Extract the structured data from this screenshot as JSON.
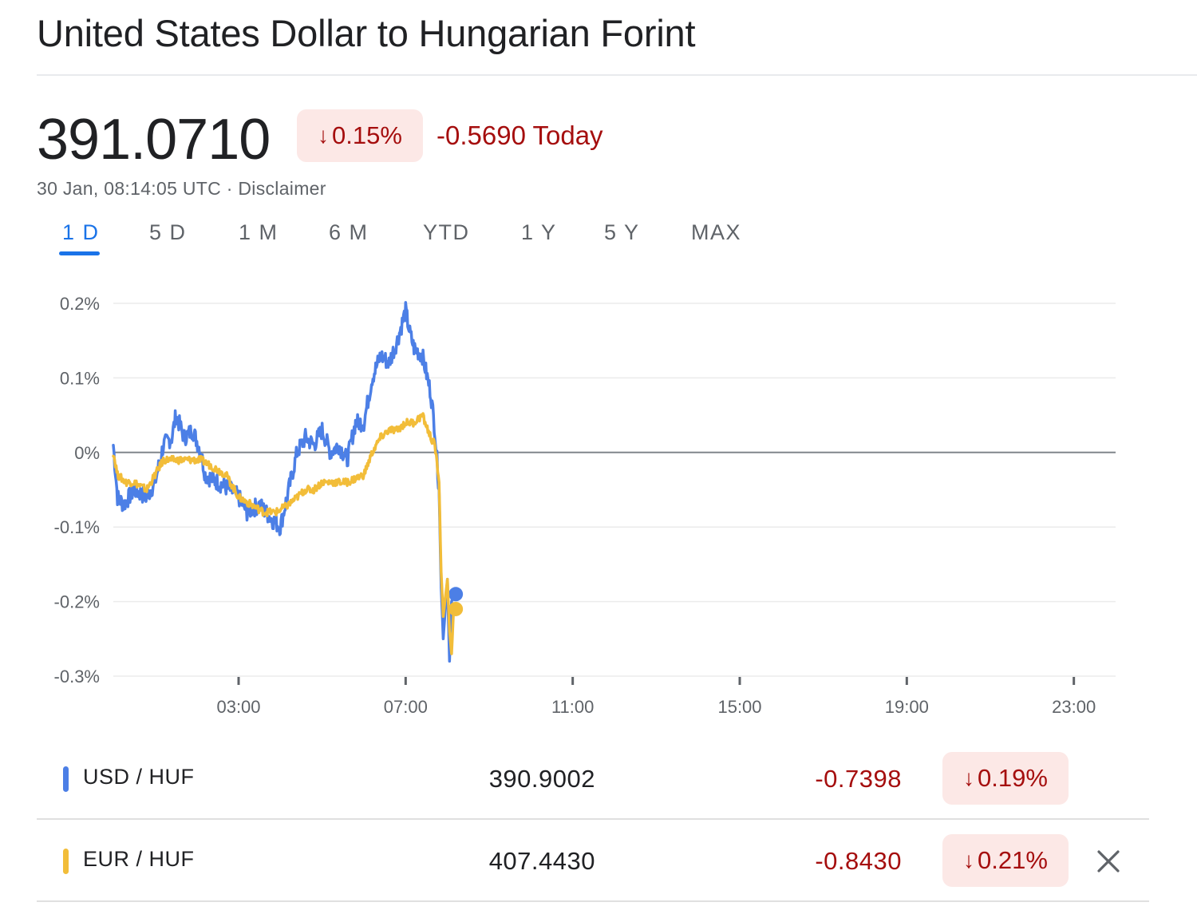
{
  "header": {
    "title": "United States Dollar to Hungarian Forint"
  },
  "quote": {
    "price": "391.0710",
    "change_pct": "0.15%",
    "change_arrow": "↓",
    "change_today": "-0.5690 Today",
    "timestamp": "30 Jan, 08:14:05 UTC · ",
    "disclaimer": "Disclaimer"
  },
  "tabs": [
    {
      "label": "1 D",
      "active": true
    },
    {
      "label": "5 D"
    },
    {
      "label": "1 M"
    },
    {
      "label": "6 M"
    },
    {
      "label": "YTD"
    },
    {
      "label": "1 Y"
    },
    {
      "label": "5 Y"
    },
    {
      "label": "MAX"
    }
  ],
  "colors": {
    "usd_series": "#4c7fe6",
    "eur_series": "#f2bd39",
    "negative": "#a50e0e",
    "negative_bg": "#fce8e6",
    "accent": "#1a73e8"
  },
  "chart_data": {
    "type": "line",
    "x_unit": "hours (UTC)",
    "x_range": [
      0,
      24
    ],
    "ylim": [
      -0.3,
      0.2
    ],
    "y_ticks": [
      "0.2%",
      "0.1%",
      "0%",
      "-0.1%",
      "-0.2%",
      "-0.3%"
    ],
    "y_tick_values": [
      0.2,
      0.1,
      0,
      -0.1,
      -0.2,
      -0.3
    ],
    "x_ticks": [
      "03:00",
      "07:00",
      "11:00",
      "15:00",
      "19:00",
      "23:00"
    ],
    "x_tick_values": [
      3,
      7,
      11,
      15,
      19,
      23
    ],
    "baseline": 0,
    "grid": true,
    "series": [
      {
        "name": "USD / HUF",
        "color": "#4c7fe6",
        "x": [
          0.0,
          0.1,
          0.25,
          0.5,
          0.8,
          1.0,
          1.2,
          1.4,
          1.5,
          1.7,
          1.9,
          2.1,
          2.2,
          2.5,
          2.8,
          3.0,
          3.2,
          3.5,
          3.8,
          4.0,
          4.2,
          4.4,
          4.6,
          4.8,
          5.0,
          5.2,
          5.4,
          5.6,
          5.8,
          6.0,
          6.2,
          6.4,
          6.6,
          6.8,
          7.0,
          7.1,
          7.2,
          7.4,
          7.6,
          7.7,
          7.8,
          7.85,
          7.9,
          8.0,
          8.05,
          8.1,
          8.15,
          8.2
        ],
        "y": [
          0.01,
          -0.06,
          -0.07,
          -0.05,
          -0.06,
          -0.04,
          0.01,
          0.02,
          0.05,
          0.02,
          0.03,
          0.0,
          -0.03,
          -0.04,
          -0.05,
          -0.06,
          -0.08,
          -0.07,
          -0.09,
          -0.1,
          -0.05,
          0.0,
          0.02,
          0.01,
          0.03,
          0.0,
          0.01,
          -0.01,
          0.04,
          0.04,
          0.1,
          0.13,
          0.12,
          0.15,
          0.19,
          0.16,
          0.14,
          0.13,
          0.08,
          0.03,
          -0.05,
          -0.18,
          -0.25,
          -0.17,
          -0.28,
          -0.2,
          -0.19,
          -0.19
        ]
      },
      {
        "name": "EUR / HUF",
        "color": "#f2bd39",
        "x": [
          0.0,
          0.1,
          0.3,
          0.5,
          0.8,
          1.0,
          1.2,
          1.5,
          1.8,
          2.1,
          2.4,
          2.7,
          3.0,
          3.3,
          3.6,
          3.9,
          4.2,
          4.4,
          4.6,
          4.8,
          5.0,
          5.3,
          5.6,
          6.0,
          6.2,
          6.4,
          6.6,
          6.8,
          7.0,
          7.2,
          7.4,
          7.6,
          7.7,
          7.8,
          7.85,
          7.9,
          8.0,
          8.05,
          8.1,
          8.15,
          8.2
        ],
        "y": [
          0.0,
          -0.03,
          -0.04,
          -0.04,
          -0.05,
          -0.03,
          -0.01,
          -0.01,
          -0.01,
          -0.01,
          -0.02,
          -0.03,
          -0.06,
          -0.07,
          -0.08,
          -0.08,
          -0.07,
          -0.06,
          -0.05,
          -0.05,
          -0.04,
          -0.04,
          -0.04,
          -0.03,
          0.0,
          0.02,
          0.03,
          0.03,
          0.04,
          0.04,
          0.05,
          0.02,
          0.01,
          -0.04,
          -0.16,
          -0.22,
          -0.17,
          -0.24,
          -0.27,
          -0.21,
          -0.21
        ]
      }
    ]
  },
  "rows": [
    {
      "pair": "USD / HUF",
      "value": "390.9002",
      "change": "-0.7398",
      "pct": "0.19%",
      "arrow": "↓"
    },
    {
      "pair": "EUR / HUF",
      "value": "407.4430",
      "change": "-0.8430",
      "pct": "0.21%",
      "arrow": "↓"
    }
  ]
}
